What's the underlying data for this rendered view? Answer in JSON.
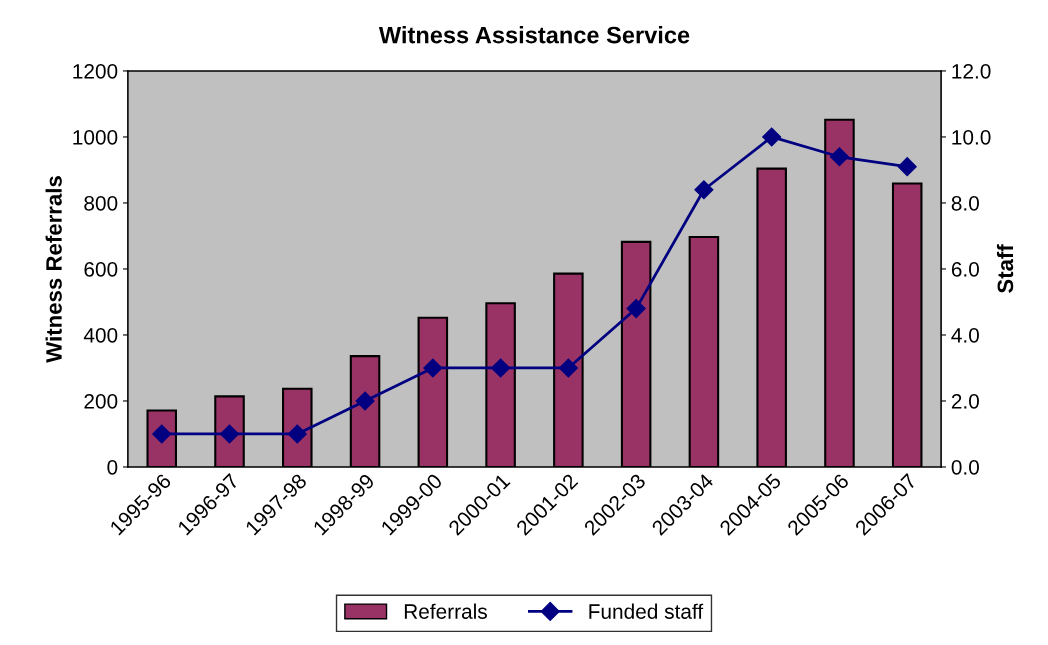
{
  "chart_data": {
    "type": "bar",
    "title": "Witness Assistance Service",
    "ylabel": "Witness Referrals",
    "y2label": "Staff",
    "categories": [
      "1995-96",
      "1996-97",
      "1997-98",
      "1998-99",
      "1999-00",
      "2000-01",
      "2001-02",
      "2002-03",
      "2003-04",
      "2004-05",
      "2005-06",
      "2006-07"
    ],
    "series": [
      {
        "name": "Referrals",
        "color": "#993366",
        "values": [
          171,
          214,
          237,
          336,
          452,
          496,
          586,
          682,
          697,
          904,
          1052,
          859
        ]
      },
      {
        "name": "Funded staff",
        "type": "line",
        "axis": "y2",
        "color": "#000080",
        "marker": "diamond",
        "values": [
          1.0,
          1.0,
          1.0,
          2.0,
          3.0,
          3.0,
          3.0,
          4.8,
          8.4,
          10.0,
          9.4,
          9.1
        ]
      }
    ],
    "ylim": [
      0,
      1200
    ],
    "yticks": [
      0,
      200,
      400,
      600,
      800,
      1000,
      1200
    ],
    "y2lim": [
      0,
      12
    ],
    "y2ticks": [
      {
        "value": 0,
        "label": "0.0"
      },
      {
        "value": 2,
        "label": "2.0"
      },
      {
        "value": 4,
        "label": "4.0"
      },
      {
        "value": 6,
        "label": "6.0"
      },
      {
        "value": 8,
        "label": "8.0"
      },
      {
        "value": 10,
        "label": "10.0"
      },
      {
        "value": 12,
        "label": "12.0"
      }
    ],
    "grid": false,
    "legend": "bottom"
  }
}
